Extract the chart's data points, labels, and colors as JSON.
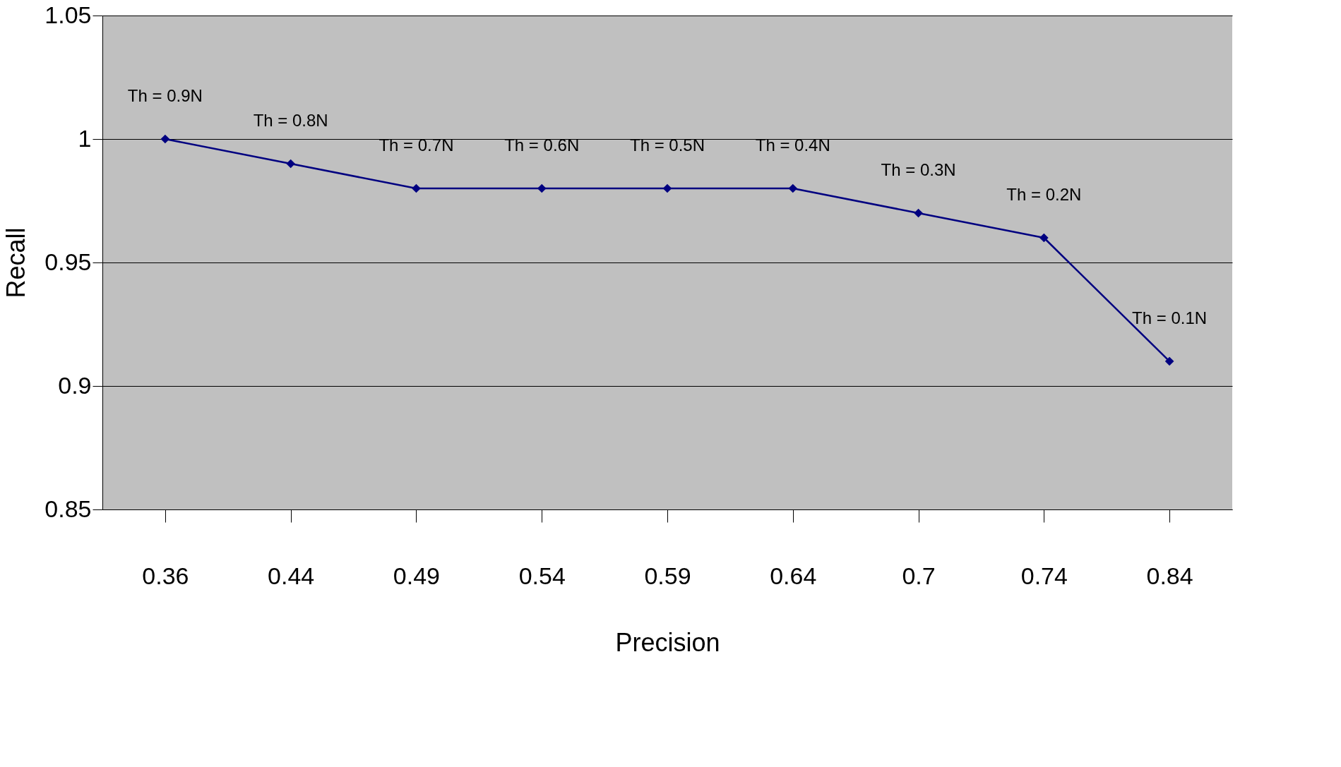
{
  "chart_data": {
    "type": "line",
    "xlabel": "Precision",
    "ylabel": "Recall",
    "categories": [
      "0.36",
      "0.44",
      "0.49",
      "0.54",
      "0.59",
      "0.64",
      "0.7",
      "0.74",
      "0.84"
    ],
    "series": [
      {
        "color": "#000080",
        "values": [
          1,
          0.99,
          0.98,
          0.98,
          0.98,
          0.98,
          0.97,
          0.96,
          0.91
        ]
      }
    ],
    "ylim": [
      0.85,
      1.05
    ],
    "yticks": [
      0.85,
      0.9,
      0.95,
      1,
      1.05
    ],
    "grid": "y",
    "marker": "diamond",
    "line_style": "solid",
    "annotations": [
      {
        "text": "Th = 0.9N",
        "x": "0.36",
        "y": 1
      },
      {
        "text": "Th = 0.8N",
        "x": "0.44",
        "y": 0.99
      },
      {
        "text": "Th = 0.7N",
        "x": "0.49",
        "y": 0.98
      },
      {
        "text": "Th = 0.6N",
        "x": "0.54",
        "y": 0.98
      },
      {
        "text": "Th = 0.5N",
        "x": "0.59",
        "y": 0.98
      },
      {
        "text": "Th = 0.4N",
        "x": "0.64",
        "y": 0.98
      },
      {
        "text": "Th = 0.3N",
        "x": "0.7",
        "y": 0.97
      },
      {
        "text": "Th = 0.2N",
        "x": "0.74",
        "y": 0.96
      },
      {
        "text": "Th = 0.1N",
        "x": "0.84",
        "y": 0.91
      }
    ]
  }
}
